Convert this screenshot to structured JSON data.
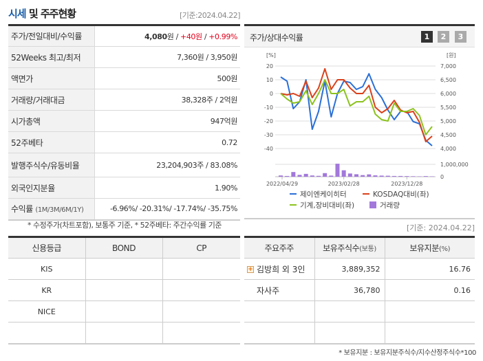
{
  "header": {
    "title_accent": "시세",
    "title_rest": " 및 주주현황",
    "date": "[기준:2024.04.22]"
  },
  "info": {
    "rows": [
      {
        "label": "주가/전일대비/수익률",
        "price": "4,080",
        "unit": "원",
        "sep1": " / ",
        "change": "+40원",
        "sep2": " / ",
        "rate": "+0.99%"
      },
      {
        "label": "52Weeks 최고/최저",
        "value": "7,360원 / 3,950원"
      },
      {
        "label": "액면가",
        "value": "500원"
      },
      {
        "label": "거래량/거래대금",
        "value": "38,328주 / 2억원"
      },
      {
        "label": "시가총액",
        "value": "947억원"
      },
      {
        "label": "52주베타",
        "value": "0.72"
      },
      {
        "label": "발행주식수/유동비율",
        "value": "23,204,903주 / 83.08%"
      },
      {
        "label": "외국인지분율",
        "value": "1.90%"
      },
      {
        "label": "수익률",
        "label_sub": "(1M/3M/6M/1Y)",
        "value": "-6.96%/ -20.31%/ -17.74%/ -35.75%"
      }
    ],
    "footnote": "* 수정주가(차트포함), 보통주 기준, * 52주베타: 주간수익률 기준"
  },
  "chart_panel": {
    "title": "주가/상대수익률",
    "pages": [
      "1",
      "2",
      "3"
    ],
    "active_page": "1",
    "date": "[기준: 2024.04.22]"
  },
  "chart_data": {
    "type": "line",
    "title": "주가/상대수익률",
    "left_axis": {
      "label": "[%]",
      "ticks": [
        "20",
        "10",
        "0",
        "-10",
        "-20",
        "-30",
        "-40"
      ],
      "range": [
        -40,
        20
      ]
    },
    "right_axis": {
      "label": "[원]",
      "ticks": [
        "7,000",
        "6,500",
        "6,000",
        "5,500",
        "5,000",
        "4,500",
        "4,000"
      ],
      "range": [
        4000,
        7000
      ]
    },
    "x_ticks": [
      "2022/04/29",
      "2023/02/28",
      "2023/12/28"
    ],
    "series": [
      {
        "name": "제이엔케이히터",
        "color": "#2a6fd6",
        "axis": "right",
        "values": [
          6600,
          6450,
          5450,
          5700,
          6500,
          4700,
          5350,
          6450,
          5150,
          6000,
          6450,
          6400,
          6150,
          6250,
          6720,
          6150,
          5850,
          5400,
          5050,
          5350,
          5350,
          4980,
          4900,
          4300,
          4100
        ]
      },
      {
        "name": "KOSDAQ대비(좌)",
        "color": "#d9401b",
        "axis": "left",
        "values": [
          0,
          -1,
          0,
          -2,
          9,
          -3,
          4,
          18,
          3,
          10,
          10,
          4,
          0,
          0,
          6,
          -10,
          -14,
          -11,
          -5,
          -12,
          -14,
          -13,
          -21,
          -35,
          -31
        ]
      },
      {
        "name": "기계,장비대비(좌)",
        "color": "#8cc21e",
        "axis": "left",
        "values": [
          0,
          -4,
          -7,
          -6,
          2,
          -8,
          0,
          10,
          0,
          0,
          3,
          -9,
          -6,
          -6,
          -2,
          -15,
          -19,
          -20,
          -7,
          -13,
          -13,
          -11,
          -16,
          -30,
          -24
        ]
      }
    ],
    "volume": {
      "name": "거래량",
      "color": "#a278db",
      "ticks": [
        "1,000,000",
        "0"
      ],
      "values": [
        100000,
        60000,
        380000,
        150000,
        230000,
        100000,
        70000,
        290000,
        90000,
        1050000,
        520000,
        260000,
        200000,
        130000,
        190000,
        110000,
        90000,
        80000,
        60000,
        60000,
        50000,
        40000,
        30000,
        50000,
        30000
      ]
    },
    "legend": [
      "제이엔케이히터",
      "KOSDAQ대비(좌)",
      "기계,장비대비(좌)",
      "거래량"
    ]
  },
  "credit": {
    "headers": [
      "신용등급",
      "BOND",
      "CP"
    ],
    "rows": [
      [
        "KIS",
        "",
        ""
      ],
      [
        "KR",
        "",
        ""
      ],
      [
        "NICE",
        "",
        ""
      ],
      [
        "",
        "",
        ""
      ]
    ]
  },
  "holders": {
    "headers": [
      "주요주주",
      "보유주식수",
      "(보통)",
      "보유지분",
      "(%)"
    ],
    "rows": [
      {
        "name": "김방희 외 3인",
        "shares": "3,889,352",
        "pct": "16.76",
        "expand": true
      },
      {
        "name": "자사주",
        "shares": "36,780",
        "pct": "0.16",
        "expand": false
      },
      {
        "name": "",
        "shares": "",
        "pct": ""
      },
      {
        "name": "",
        "shares": "",
        "pct": ""
      }
    ],
    "footnote": "* 보유지분 : 보유지분주식수/지수산정주식수*100"
  }
}
